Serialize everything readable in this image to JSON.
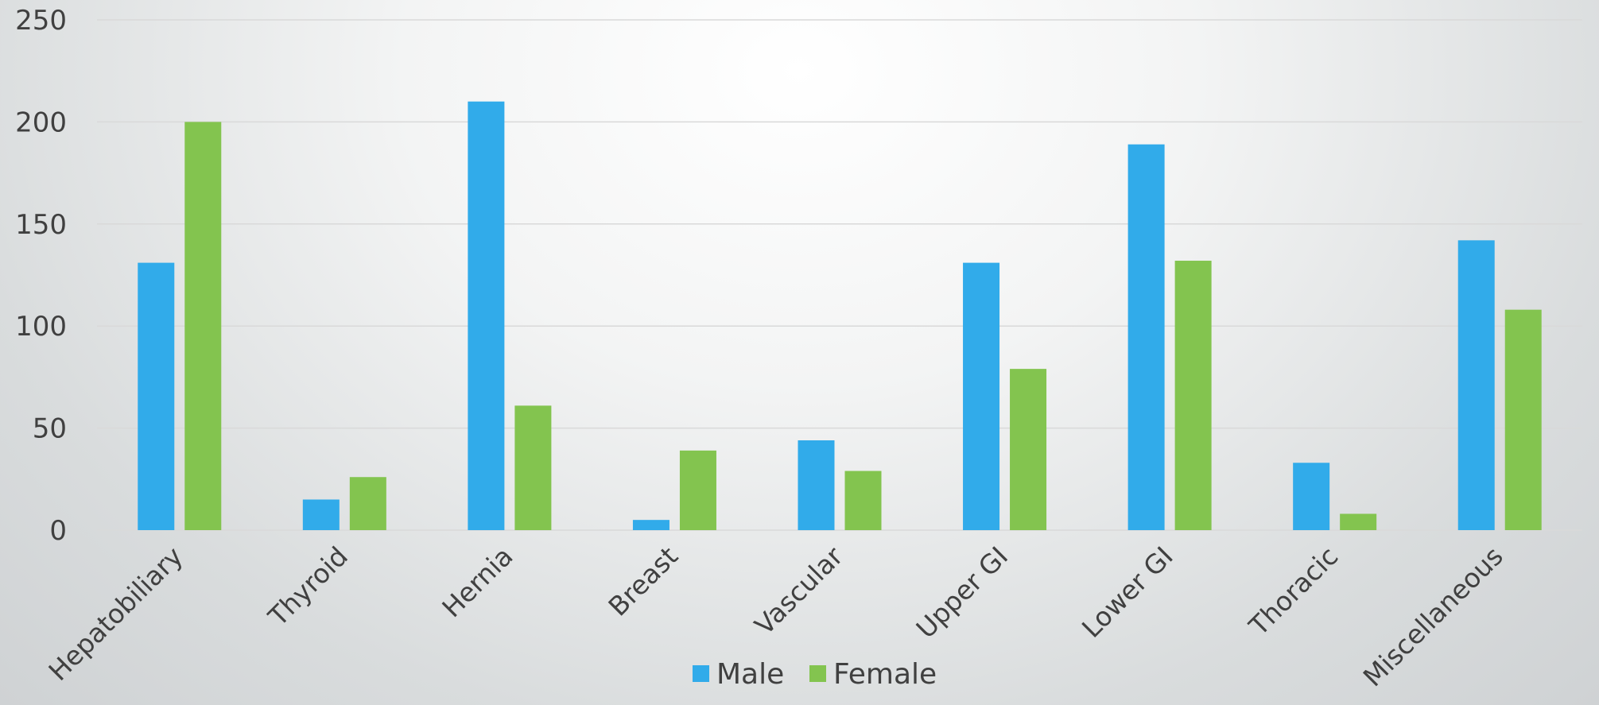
{
  "chart_data": {
    "type": "bar",
    "title": "",
    "xlabel": "",
    "ylabel": "",
    "categories": [
      "Hepatobiliary",
      "Thyroid",
      "Hernia",
      "Breast",
      "Vascular",
      "Upper GI",
      "Lower GI",
      "Thoracic",
      "Miscellaneous"
    ],
    "series": [
      {
        "name": "Male",
        "color": "#31abea",
        "values": [
          131,
          15,
          210,
          5,
          44,
          131,
          189,
          33,
          142
        ]
      },
      {
        "name": "Female",
        "color": "#83c44f",
        "values": [
          200,
          26,
          61,
          39,
          29,
          79,
          132,
          8,
          108
        ]
      }
    ],
    "ylim": [
      0,
      250
    ],
    "yticks": [
      "0",
      "50",
      "100",
      "150",
      "200",
      "250"
    ],
    "grid": true,
    "legend_position": "bottom",
    "colors": {
      "gridline": "#d9d9d9",
      "text": "#404040"
    }
  }
}
